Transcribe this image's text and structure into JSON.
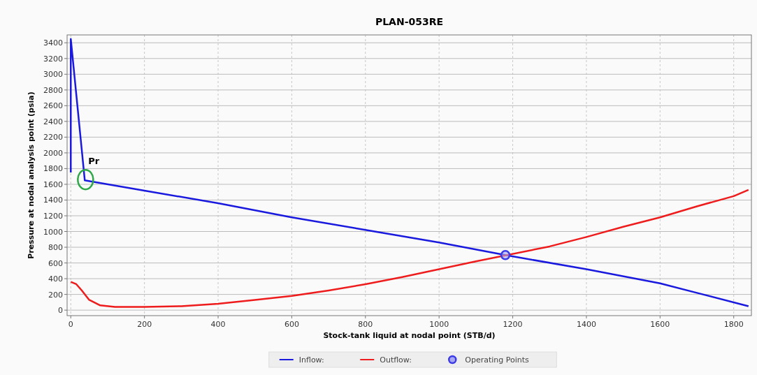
{
  "chart_data": {
    "type": "line",
    "title": "PLAN-053RE",
    "xlabel": "Stock-tank liquid at nodal point (STB/d)",
    "ylabel": "Pressure at nodal analysis point (psia)",
    "xlim": [
      -10,
      1848
    ],
    "ylim": [
      -70,
      3500
    ],
    "xticks": [
      0,
      200,
      400,
      600,
      800,
      1000,
      1200,
      1400,
      1600,
      1800
    ],
    "yticks": [
      0,
      200,
      400,
      600,
      800,
      1000,
      1200,
      1400,
      1600,
      1800,
      2000,
      2200,
      2400,
      2600,
      2800,
      3000,
      3200,
      3400
    ],
    "grid": true,
    "legend": "bottom",
    "line_style": "solid",
    "annotations": [
      {
        "text": "Pr",
        "x": 40,
        "y": 1660
      }
    ],
    "series": [
      {
        "name": "Inflow:",
        "color": "#1a1adf",
        "x": [
          0,
          0,
          38,
          200,
          400,
          600,
          800,
          1000,
          1180,
          1400,
          1600,
          1700,
          1840
        ],
        "values": [
          1750,
          3450,
          1650,
          1520,
          1360,
          1180,
          1020,
          860,
          700,
          520,
          340,
          220,
          50
        ]
      },
      {
        "name": "Outflow:",
        "color": "#ee1c1c",
        "x": [
          0,
          15,
          30,
          50,
          80,
          120,
          200,
          300,
          400,
          500,
          600,
          700,
          800,
          900,
          1000,
          1100,
          1300,
          1400,
          1500,
          1600,
          1700,
          1800,
          1840
        ],
        "values": [
          360,
          330,
          250,
          130,
          60,
          40,
          40,
          50,
          80,
          130,
          180,
          250,
          330,
          420,
          520,
          620,
          810,
          930,
          1060,
          1180,
          1320,
          1450,
          1530
        ]
      },
      {
        "name": "Operating Points",
        "type": "scatter",
        "marker": "circle",
        "color": "#3a3ae8",
        "x": [
          1180
        ],
        "values": [
          700
        ]
      }
    ]
  }
}
